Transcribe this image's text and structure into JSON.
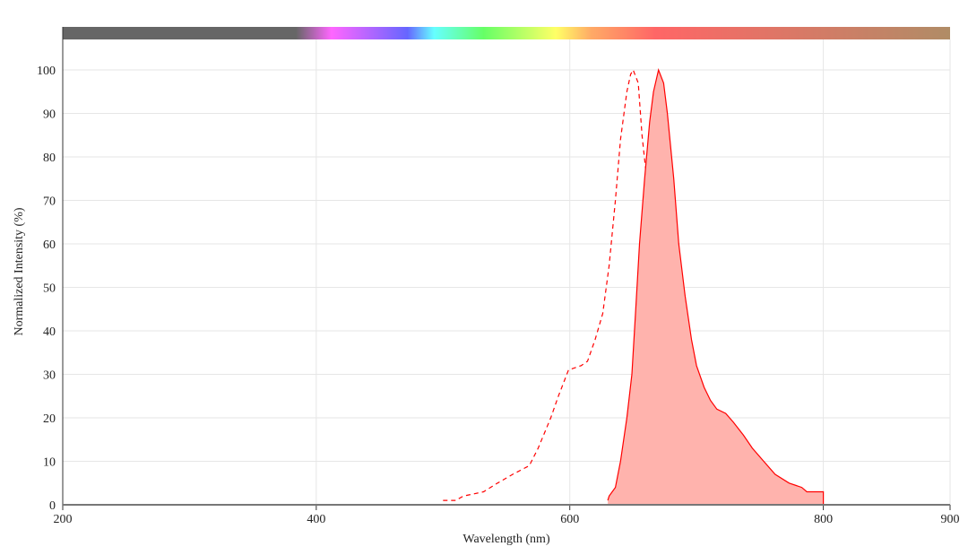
{
  "chart_data": {
    "type": "area",
    "title": "",
    "xlabel": "Wavelength (nm)",
    "ylabel": "Normalized Intensity (%)",
    "xlim": [
      200,
      900
    ],
    "ylim": [
      0,
      100
    ],
    "xticks": [
      200,
      400,
      600,
      800,
      900
    ],
    "yticks": [
      0,
      10,
      20,
      30,
      40,
      50,
      60,
      70,
      80,
      90,
      100
    ],
    "grid": true,
    "legend": "none",
    "spectrum_bar": {
      "stops": [
        {
          "nm": 200,
          "color": "#666666"
        },
        {
          "nm": 384,
          "color": "#666666"
        },
        {
          "nm": 412,
          "color": "#ff66ff"
        },
        {
          "nm": 472,
          "color": "#6666ff"
        },
        {
          "nm": 493,
          "color": "#66ffff"
        },
        {
          "nm": 532,
          "color": "#66ff66"
        },
        {
          "nm": 589,
          "color": "#ffff66"
        },
        {
          "nm": 617,
          "color": "#ffaa66"
        },
        {
          "nm": 667,
          "color": "#ff6666"
        },
        {
          "nm": 900,
          "color": "#b08c66"
        }
      ]
    },
    "series": [
      {
        "style": "dashed",
        "filled": false,
        "color": "#ff0000",
        "x": [
          500,
          510,
          516,
          532,
          543,
          555,
          568,
          575,
          585,
          591,
          599,
          609,
          614,
          620,
          626,
          631,
          636,
          640,
          645,
          648,
          650,
          654,
          657,
          661,
          665,
          668,
          671,
          674,
          678,
          682,
          688,
          693,
          697,
          700,
          700
        ],
        "y": [
          1,
          1,
          2,
          3,
          5,
          7,
          9,
          13,
          20,
          25,
          31,
          32,
          33,
          38,
          44,
          55,
          70,
          84,
          95,
          99,
          100,
          97,
          85,
          74,
          60,
          48,
          35,
          22,
          12,
          6,
          3.5,
          3,
          1.5,
          1,
          0
        ]
      },
      {
        "style": "solid",
        "filled": true,
        "color": "#ff0000",
        "fill": "#ffb3ad",
        "x": [
          630,
          631,
          636,
          640,
          645,
          649,
          652,
          655,
          659,
          663,
          666,
          670,
          674,
          677,
          682,
          686,
          691,
          696,
          700,
          706,
          711,
          716,
          723,
          729,
          737,
          744,
          753,
          762,
          773,
          783,
          787,
          800,
          800
        ],
        "y": [
          1,
          2,
          4,
          10,
          20,
          30,
          45,
          60,
          75,
          88,
          95,
          100,
          97,
          90,
          75,
          60,
          48,
          38,
          32,
          27,
          24,
          22,
          21,
          19,
          16,
          13,
          10,
          7,
          5,
          4,
          3,
          3,
          0
        ]
      }
    ]
  }
}
